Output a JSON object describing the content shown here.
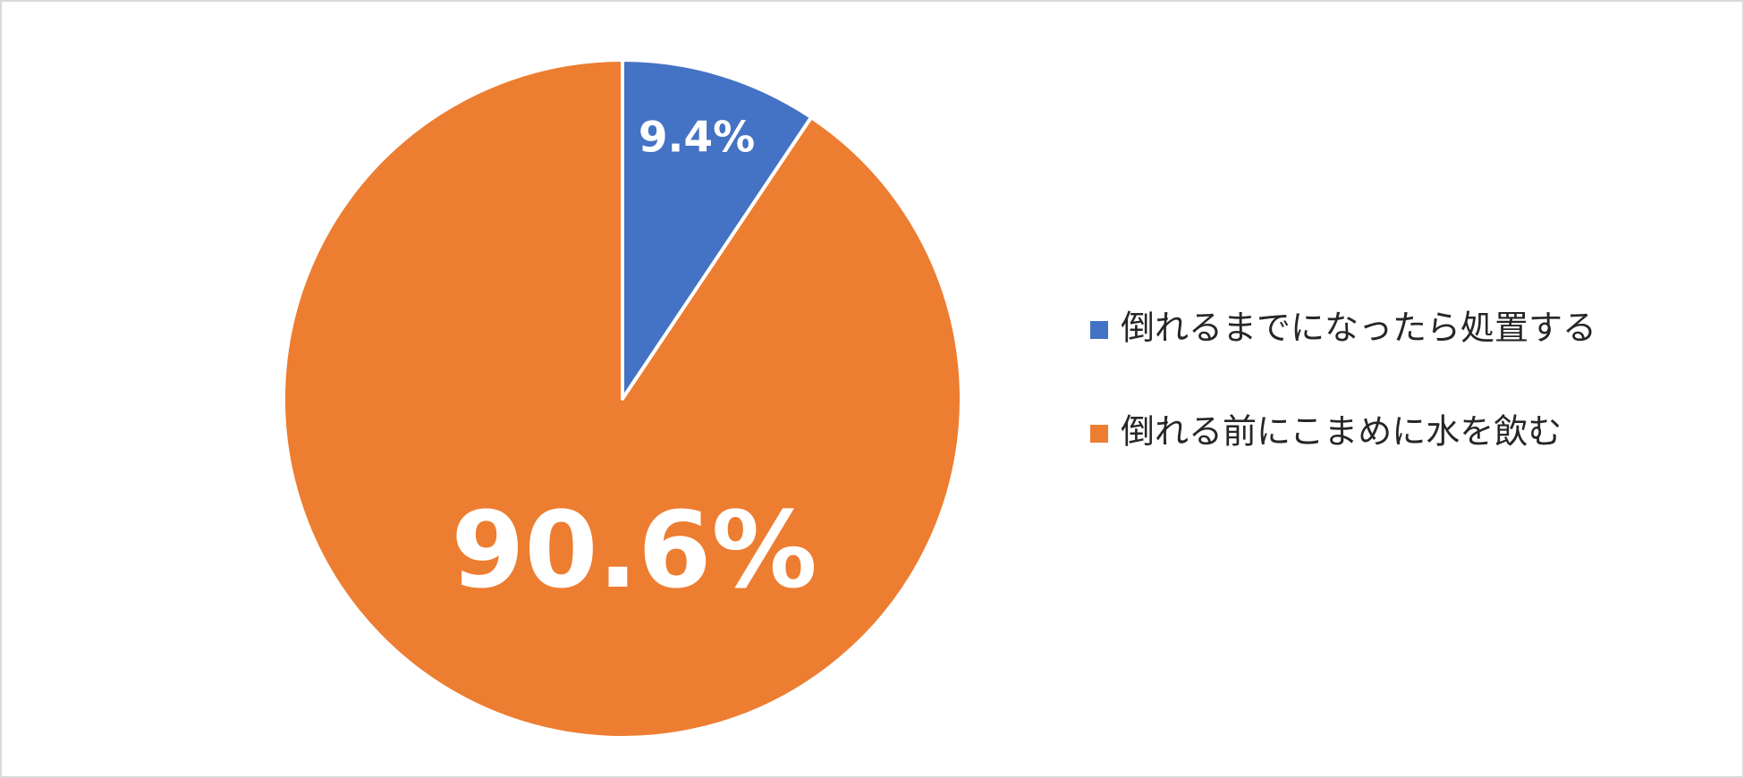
{
  "chart_data": {
    "type": "pie",
    "categories": [
      "倒れるまでになったら処置する",
      "倒れる前にこまめに水を飲む"
    ],
    "values": [
      9.4,
      90.6
    ],
    "value_labels": [
      "9.4%",
      "90.6%"
    ],
    "colors": [
      "#4472c4",
      "#ed7d31"
    ],
    "legend": "right"
  }
}
